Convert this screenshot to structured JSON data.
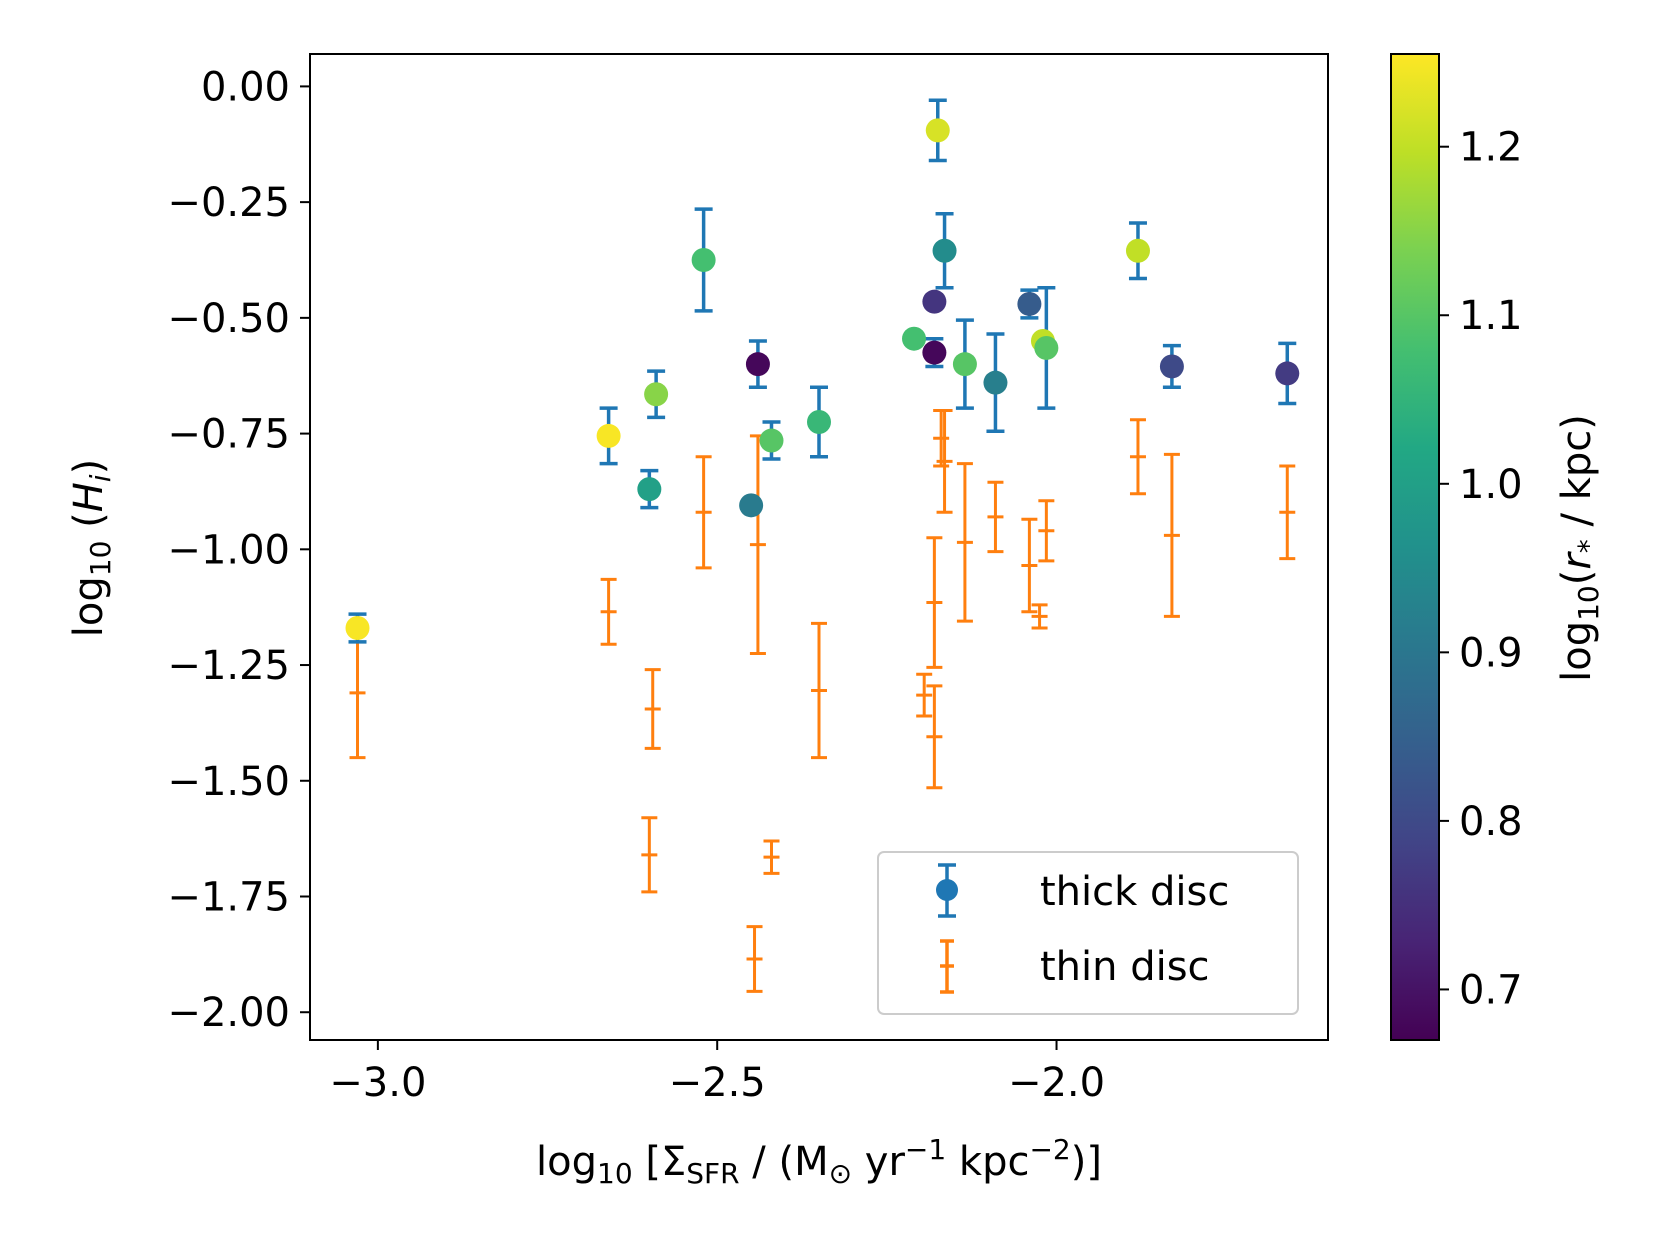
{
  "chart_data": {
    "type": "scatter",
    "xlabel": "log10 [ΣSFR / (M⊙ yr−1 kpc−2)]",
    "ylabel": "log10 (Hi)",
    "colorbar_label": "log10 (r* / kpc)",
    "xlim": [
      -3.1,
      -1.6
    ],
    "ylim": [
      -2.06,
      0.07
    ],
    "x_ticks": [
      -3.0,
      -2.5,
      -2.0
    ],
    "x_tick_labels": [
      "−3.0",
      "−2.5",
      "−2.0"
    ],
    "y_ticks": [
      0.0,
      -0.25,
      -0.5,
      -0.75,
      -1.0,
      -1.25,
      -1.5,
      -1.75,
      -2.0
    ],
    "y_tick_labels": [
      "0.00",
      "−0.25",
      "−0.50",
      "−0.75",
      "−1.00",
      "−1.25",
      "−1.50",
      "−1.75",
      "−2.00"
    ],
    "colorbar": {
      "colormap": "viridis",
      "range": [
        0.67,
        1.255
      ],
      "ticks": [
        0.7,
        0.8,
        0.9,
        1.0,
        1.1,
        1.2
      ],
      "tick_labels": [
        "0.7",
        "0.8",
        "0.9",
        "1.0",
        "1.1",
        "1.2"
      ]
    },
    "legend": {
      "position": "lower-right",
      "entries": [
        "thick disc",
        "thin disc"
      ]
    },
    "series": [
      {
        "name": "thick disc",
        "errorbar_color": "#1f77b4",
        "points": [
          {
            "x": -3.03,
            "y": -1.17,
            "yerr": [
              0.03,
              0.03
            ],
            "c": 1.25
          },
          {
            "x": -2.66,
            "y": -0.755,
            "yerr": [
              0.06,
              0.06
            ],
            "c": 1.25
          },
          {
            "x": -2.6,
            "y": -0.87,
            "yerr": [
              0.04,
              0.04
            ],
            "c": 1.0
          },
          {
            "x": -2.59,
            "y": -0.665,
            "yerr": [
              0.05,
              0.05
            ],
            "c": 1.15
          },
          {
            "x": -2.52,
            "y": -0.375,
            "yerr": [
              0.11,
              0.11
            ],
            "c": 1.08
          },
          {
            "x": -2.44,
            "y": -0.6,
            "yerr": [
              0.05,
              0.05
            ],
            "c": 0.68
          },
          {
            "x": -2.45,
            "y": -0.905,
            "yerr": [
              0.0,
              0.0
            ],
            "c": 0.91
          },
          {
            "x": -2.42,
            "y": -0.765,
            "yerr": [
              0.04,
              0.04
            ],
            "c": 1.1
          },
          {
            "x": -2.35,
            "y": -0.725,
            "yerr": [
              0.075,
              0.075
            ],
            "c": 1.06
          },
          {
            "x": -2.21,
            "y": -0.545,
            "yerr": [
              0.0,
              0.0
            ],
            "c": 1.08
          },
          {
            "x": -2.18,
            "y": -0.465,
            "yerr": [
              0.0,
              0.0
            ],
            "c": 0.76
          },
          {
            "x": -2.18,
            "y": -0.575,
            "yerr": [
              0.03,
              0.03
            ],
            "c": 0.68
          },
          {
            "x": -2.175,
            "y": -0.095,
            "yerr": [
              0.065,
              0.065
            ],
            "c": 1.22
          },
          {
            "x": -2.165,
            "y": -0.355,
            "yerr": [
              0.08,
              0.08
            ],
            "c": 0.95
          },
          {
            "x": -2.135,
            "y": -0.6,
            "yerr": [
              0.095,
              0.095
            ],
            "c": 1.1
          },
          {
            "x": -2.09,
            "y": -0.64,
            "yerr": [
              0.105,
              0.105
            ],
            "c": 0.92
          },
          {
            "x": -2.04,
            "y": -0.47,
            "yerr": [
              0.03,
              0.03
            ],
            "c": 0.84
          },
          {
            "x": -2.02,
            "y": -0.55,
            "yerr": [
              0.0,
              0.0
            ],
            "c": 1.2
          },
          {
            "x": -2.015,
            "y": -0.565,
            "yerr": [
              0.13,
              0.13
            ],
            "c": 1.1
          },
          {
            "x": -1.88,
            "y": -0.355,
            "yerr": [
              0.06,
              0.06
            ],
            "c": 1.2
          },
          {
            "x": -1.83,
            "y": -0.605,
            "yerr": [
              0.045,
              0.045
            ],
            "c": 0.8
          },
          {
            "x": -1.66,
            "y": -0.62,
            "yerr": [
              0.065,
              0.065
            ],
            "c": 0.77
          }
        ]
      },
      {
        "name": "thin disc",
        "errorbar_color": "#ff7f0e",
        "points": [
          {
            "x": -3.03,
            "y": -1.31,
            "yerr": [
              0.14,
              0.14
            ]
          },
          {
            "x": -2.66,
            "y": -1.135,
            "yerr": [
              0.07,
              0.07
            ]
          },
          {
            "x": -2.595,
            "y": -1.345,
            "yerr": [
              0.085,
              0.085
            ]
          },
          {
            "x": -2.6,
            "y": -1.66,
            "yerr": [
              0.08,
              0.08
            ]
          },
          {
            "x": -2.52,
            "y": -0.92,
            "yerr": [
              0.12,
              0.12
            ]
          },
          {
            "x": -2.445,
            "y": -1.885,
            "yerr": [
              0.07,
              0.07
            ]
          },
          {
            "x": -2.44,
            "y": -0.99,
            "yerr": [
              0.235,
              0.235
            ]
          },
          {
            "x": -2.42,
            "y": -1.665,
            "yerr": [
              0.035,
              0.035
            ]
          },
          {
            "x": -2.35,
            "y": -1.305,
            "yerr": [
              0.145,
              0.145
            ]
          },
          {
            "x": -2.195,
            "y": -1.315,
            "yerr": [
              0.045,
              0.045
            ]
          },
          {
            "x": -2.18,
            "y": -1.115,
            "yerr": [
              0.14,
              0.14
            ]
          },
          {
            "x": -2.18,
            "y": -1.405,
            "yerr": [
              0.11,
              0.11
            ]
          },
          {
            "x": -2.17,
            "y": -0.76,
            "yerr": [
              0.06,
              0.06
            ]
          },
          {
            "x": -2.165,
            "y": -0.81,
            "yerr": [
              0.11,
              0.11
            ]
          },
          {
            "x": -2.135,
            "y": -0.985,
            "yerr": [
              0.17,
              0.17
            ]
          },
          {
            "x": -2.09,
            "y": -0.93,
            "yerr": [
              0.075,
              0.075
            ]
          },
          {
            "x": -2.04,
            "y": -1.035,
            "yerr": [
              0.1,
              0.1
            ]
          },
          {
            "x": -2.025,
            "y": -1.145,
            "yerr": [
              0.025,
              0.025
            ]
          },
          {
            "x": -2.015,
            "y": -0.96,
            "yerr": [
              0.065,
              0.065
            ]
          },
          {
            "x": -1.88,
            "y": -0.8,
            "yerr": [
              0.08,
              0.08
            ]
          },
          {
            "x": -1.83,
            "y": -0.97,
            "yerr": [
              0.175,
              0.175
            ]
          },
          {
            "x": -1.66,
            "y": -0.92,
            "yerr": [
              0.1,
              0.1
            ]
          }
        ]
      }
    ]
  }
}
